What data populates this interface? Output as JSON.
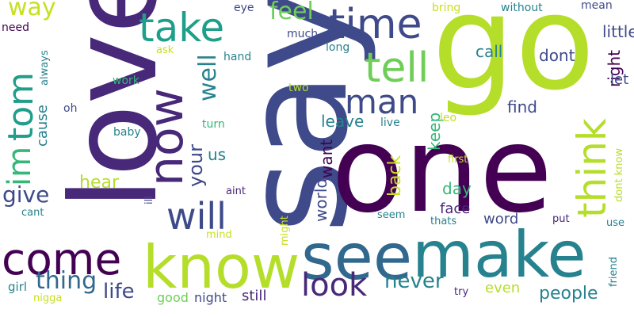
{
  "palette": {
    "dark_purple": "#440154",
    "indigo": "#482878",
    "purple_blue": "#3e4a89",
    "blue": "#31688e",
    "teal_blue": "#26828e",
    "teal": "#1f9e89",
    "green_teal": "#35b779",
    "green": "#6ece58",
    "lime": "#b5de2b",
    "yellow_green": "#c8e020"
  },
  "words": [
    {
      "text": "love",
      "weight": 100,
      "color": "#482878"
    },
    {
      "text": "say",
      "weight": 96,
      "color": "#3e4a89"
    },
    {
      "text": "go",
      "weight": 95,
      "color": "#b5de2b"
    },
    {
      "text": "one",
      "weight": 90,
      "color": "#440154"
    },
    {
      "text": "make",
      "weight": 70,
      "color": "#26828e"
    },
    {
      "text": "see",
      "weight": 62,
      "color": "#31688e"
    },
    {
      "text": "know",
      "weight": 60,
      "color": "#b5de2b"
    },
    {
      "text": "come",
      "weight": 52,
      "color": "#440154"
    },
    {
      "text": "now",
      "weight": 50,
      "color": "#482878"
    },
    {
      "text": "time",
      "weight": 46,
      "color": "#3e4a89"
    },
    {
      "text": "take",
      "weight": 40,
      "color": "#1f9e89"
    },
    {
      "text": "think",
      "weight": 40,
      "color": "#b5de2b"
    },
    {
      "text": "tell",
      "weight": 40,
      "color": "#6ece58"
    },
    {
      "text": "tom",
      "weight": 38,
      "color": "#1f9e89"
    },
    {
      "text": "im",
      "weight": 36,
      "color": "#35b779"
    },
    {
      "text": "will",
      "weight": 36,
      "color": "#3e4a89"
    },
    {
      "text": "man",
      "weight": 35,
      "color": "#3e4a89"
    },
    {
      "text": "look",
      "weight": 34,
      "color": "#482878"
    },
    {
      "text": "way",
      "weight": 26,
      "color": "#c8e020"
    },
    {
      "text": "give",
      "weight": 26,
      "color": "#3e4a89"
    },
    {
      "text": "thing",
      "weight": 26,
      "color": "#31688e"
    },
    {
      "text": "well",
      "weight": 25,
      "color": "#26828e"
    },
    {
      "text": "feel",
      "weight": 24,
      "color": "#6ece58"
    },
    {
      "text": "life",
      "weight": 24,
      "color": "#3e4a89"
    },
    {
      "text": "never",
      "weight": 24,
      "color": "#26828e"
    },
    {
      "text": "your",
      "weight": 22,
      "color": "#3e4a89"
    },
    {
      "text": "hear",
      "weight": 22,
      "color": "#b5de2b"
    },
    {
      "text": "back",
      "weight": 20,
      "color": "#c8e020"
    },
    {
      "text": "people",
      "weight": 20,
      "color": "#26828e"
    },
    {
      "text": "find",
      "weight": 19,
      "color": "#3e4a89"
    },
    {
      "text": "dont",
      "weight": 19,
      "color": "#3e4a89"
    },
    {
      "text": "call",
      "weight": 18,
      "color": "#26828e"
    },
    {
      "text": "little",
      "weight": 18,
      "color": "#3e4a89"
    },
    {
      "text": "right",
      "weight": 18,
      "color": "#440154"
    },
    {
      "text": "let",
      "weight": 18,
      "color": "#3e4a89"
    },
    {
      "text": "leave",
      "weight": 17,
      "color": "#26828e"
    },
    {
      "text": "keep",
      "weight": 17,
      "color": "#35b779"
    },
    {
      "text": "world",
      "weight": 17,
      "color": "#3e4a89"
    },
    {
      "text": "want",
      "weight": 17,
      "color": "#440154"
    },
    {
      "text": "us",
      "weight": 17,
      "color": "#26828e"
    },
    {
      "text": "day",
      "weight": 17,
      "color": "#35b779"
    },
    {
      "text": "face",
      "weight": 16,
      "color": "#482878"
    },
    {
      "text": "word",
      "weight": 16,
      "color": "#3e4a89"
    },
    {
      "text": "even",
      "weight": 16,
      "color": "#b5de2b"
    },
    {
      "text": "still",
      "weight": 16,
      "color": "#482878"
    },
    {
      "text": "good",
      "weight": 15,
      "color": "#6ece58"
    },
    {
      "text": "night",
      "weight": 15,
      "color": "#3e4a89"
    },
    {
      "text": "cause",
      "weight": 15,
      "color": "#26828e"
    },
    {
      "text": "girl",
      "weight": 14,
      "color": "#26828e"
    },
    {
      "text": "much",
      "weight": 14,
      "color": "#3e4a89"
    },
    {
      "text": "long",
      "weight": 14,
      "color": "#26828e"
    },
    {
      "text": "hand",
      "weight": 14,
      "color": "#26828e"
    },
    {
      "text": "work",
      "weight": 14,
      "color": "#35b779"
    },
    {
      "text": "need",
      "weight": 14,
      "color": "#440154"
    },
    {
      "text": "eye",
      "weight": 14,
      "color": "#3e4a89"
    },
    {
      "text": "without",
      "weight": 14,
      "color": "#26828e"
    },
    {
      "text": "mean",
      "weight": 13,
      "color": "#3e4a89"
    },
    {
      "text": "bring",
      "weight": 13,
      "color": "#c8e020"
    },
    {
      "text": "two",
      "weight": 13,
      "color": "#b5de2b"
    },
    {
      "text": "turn",
      "weight": 13,
      "color": "#35b779"
    },
    {
      "text": "baby",
      "weight": 13,
      "color": "#26828e"
    },
    {
      "text": "oh",
      "weight": 13,
      "color": "#3e4a89"
    },
    {
      "text": "live",
      "weight": 13,
      "color": "#26828e"
    },
    {
      "text": "leo",
      "weight": 13,
      "color": "#c8e020"
    },
    {
      "text": "first",
      "weight": 12,
      "color": "#c8e020"
    },
    {
      "text": "aint",
      "weight": 12,
      "color": "#482878"
    },
    {
      "text": "ill",
      "weight": 12,
      "color": "#3e4a89"
    },
    {
      "text": "cant",
      "weight": 12,
      "color": "#26828e"
    },
    {
      "text": "seem",
      "weight": 12,
      "color": "#26828e"
    },
    {
      "text": "thats",
      "weight": 12,
      "color": "#26828e"
    },
    {
      "text": "put",
      "weight": 12,
      "color": "#482878"
    },
    {
      "text": "use",
      "weight": 12,
      "color": "#26828e"
    },
    {
      "text": "mind",
      "weight": 12,
      "color": "#c8e020"
    },
    {
      "text": "might",
      "weight": 12,
      "color": "#c8e020"
    },
    {
      "text": "friend",
      "weight": 12,
      "color": "#26828e"
    },
    {
      "text": "try",
      "weight": 12,
      "color": "#482878"
    },
    {
      "text": "nigga",
      "weight": 12,
      "color": "#c8e020"
    },
    {
      "text": "ask",
      "weight": 12,
      "color": "#c8e020"
    },
    {
      "text": "always",
      "weight": 12,
      "color": "#26828e"
    },
    {
      "text": "dont know",
      "weight": 12,
      "color": "#b5de2b"
    }
  ]
}
